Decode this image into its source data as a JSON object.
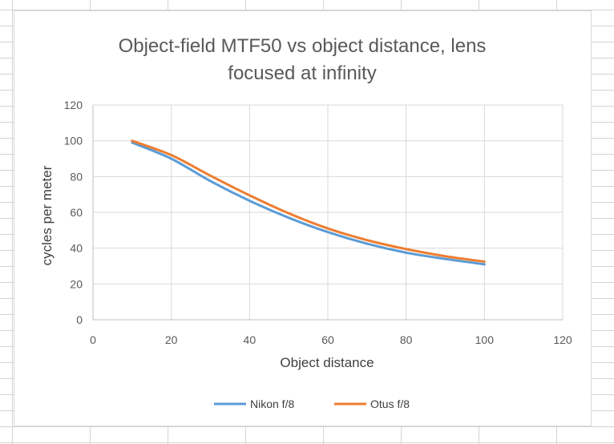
{
  "chart_data": {
    "type": "line",
    "title": "Object-field MTF50 vs object distance, lens focused at infinity",
    "title_lines": [
      "Object-field MTF50 vs object distance, lens",
      "focused at infinity"
    ],
    "xlabel": "Object distance",
    "ylabel": "cycles per meter",
    "xlim": [
      0,
      120
    ],
    "ylim": [
      0,
      120
    ],
    "x_ticks": [
      0,
      20,
      40,
      60,
      80,
      100,
      120
    ],
    "y_ticks": [
      0,
      20,
      40,
      60,
      80,
      100,
      120
    ],
    "grid": true,
    "legend_position": "bottom",
    "series": [
      {
        "name": "Nikon f/8",
        "color": "#5b9bd5",
        "x": [
          10,
          20,
          30,
          40,
          50,
          60,
          70,
          80,
          90,
          100
        ],
        "y": [
          99,
          90,
          77.5,
          66.5,
          57,
          49,
          42.5,
          37.5,
          34,
          31
        ]
      },
      {
        "name": "Otus f/8",
        "color": "#ed7d31",
        "x": [
          10,
          20,
          30,
          40,
          50,
          60,
          70,
          80,
          90,
          100
        ],
        "y": [
          100,
          92,
          80.5,
          69.5,
          59.5,
          51,
          44.5,
          39.5,
          35.5,
          32.5
        ]
      }
    ]
  }
}
